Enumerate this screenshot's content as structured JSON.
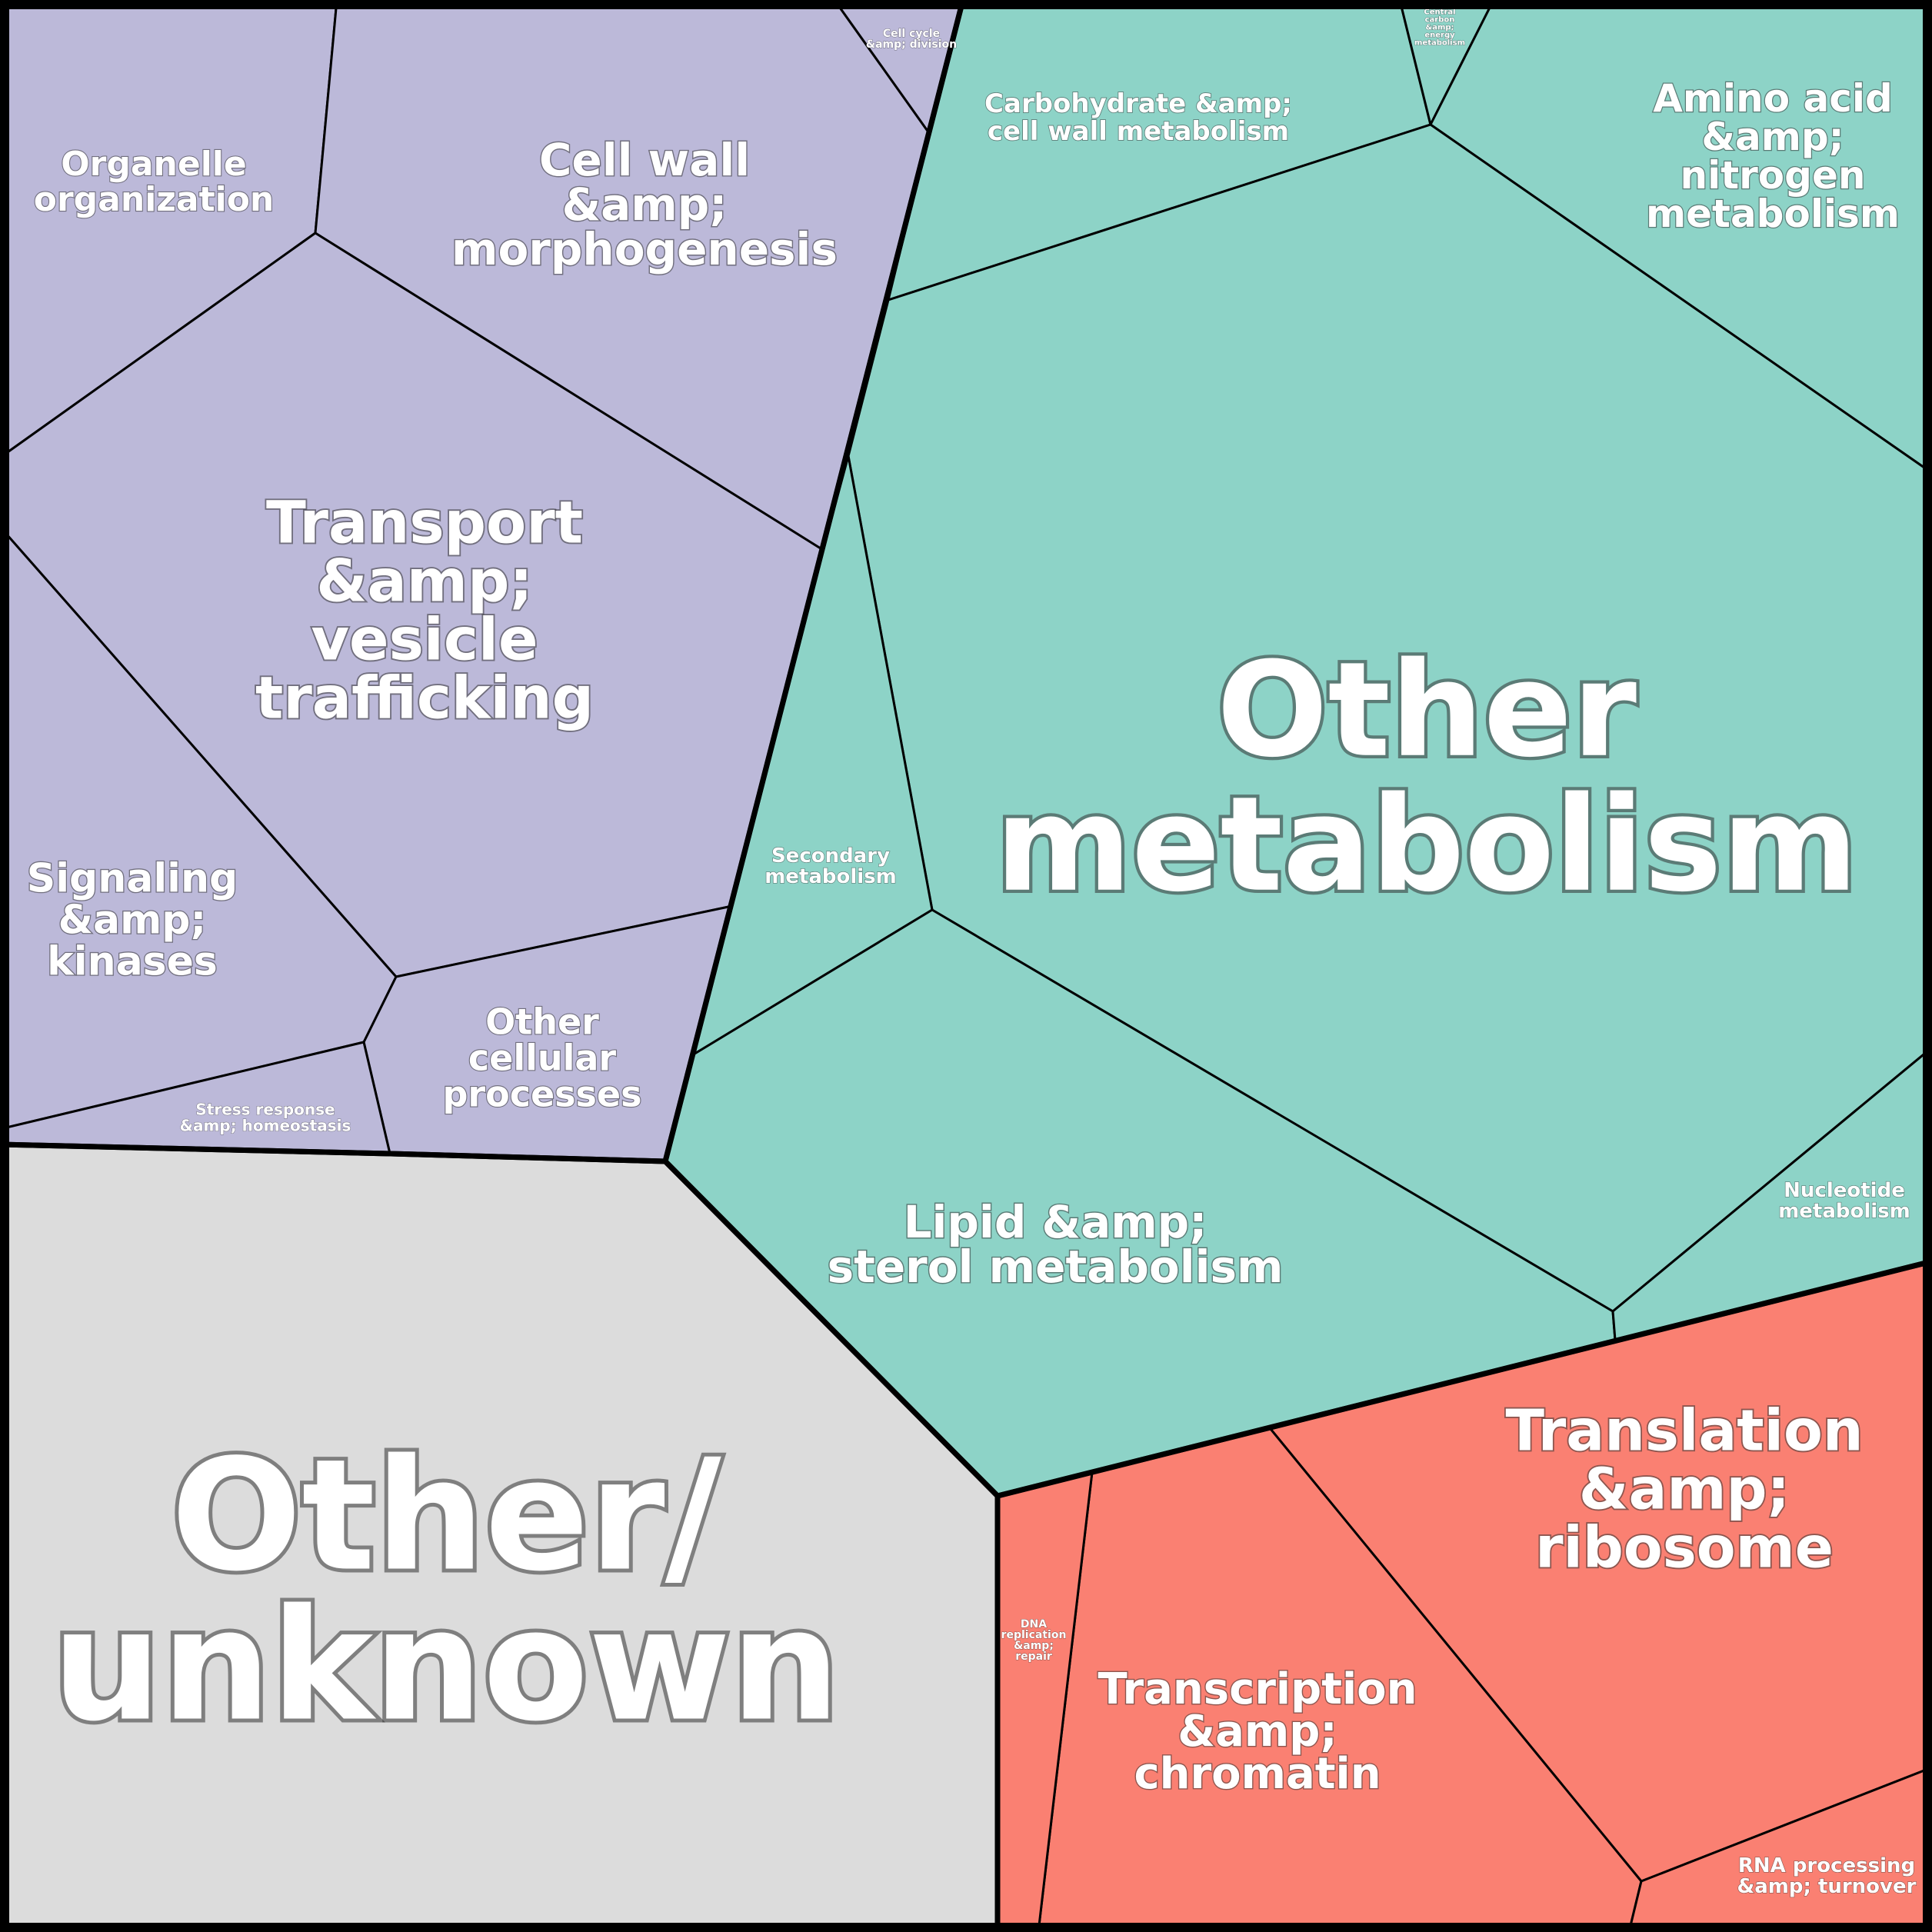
{
  "groups": [
    {
      "id": "cellular",
      "color": "#bcb9d9"
    },
    {
      "id": "metabolism",
      "color": "#8dd3c7"
    },
    {
      "id": "info",
      "color": "#fa8072"
    },
    {
      "id": "unknown",
      "color": "#dcdcdc"
    }
  ],
  "cells": [
    {
      "id": "organelle",
      "group": "cellular",
      "lines": [
        "Organelle",
        "organization"
      ]
    },
    {
      "id": "cellwall",
      "group": "cellular",
      "lines": [
        "Cell wall",
        "&amp;",
        "morphogenesis"
      ]
    },
    {
      "id": "cellcycle",
      "group": "cellular",
      "lines": [
        "Cell cycle",
        "&amp; division"
      ]
    },
    {
      "id": "transport",
      "group": "cellular",
      "lines": [
        "Transport",
        "&amp;",
        "vesicle",
        "trafficking"
      ]
    },
    {
      "id": "signaling",
      "group": "cellular",
      "lines": [
        "Signaling",
        "&amp;",
        "kinases"
      ]
    },
    {
      "id": "othercell",
      "group": "cellular",
      "lines": [
        "Other",
        "cellular",
        "processes"
      ]
    },
    {
      "id": "stress",
      "group": "cellular",
      "lines": [
        "Stress response",
        "&amp; homeostasis"
      ]
    },
    {
      "id": "carb",
      "group": "metabolism",
      "lines": [
        "Carbohydrate &amp;",
        "cell wall metabolism"
      ]
    },
    {
      "id": "central",
      "group": "metabolism",
      "lines": [
        "Central",
        "carbon",
        "&amp;",
        "energy",
        "metabolism"
      ]
    },
    {
      "id": "amino",
      "group": "metabolism",
      "lines": [
        "Amino acid",
        "&amp;",
        "nitrogen",
        "metabolism"
      ]
    },
    {
      "id": "othermeta",
      "group": "metabolism",
      "lines": [
        "Other",
        "metabolism"
      ]
    },
    {
      "id": "secondary",
      "group": "metabolism",
      "lines": [
        "Secondary",
        "metabolism"
      ]
    },
    {
      "id": "lipid",
      "group": "metabolism",
      "lines": [
        "Lipid &amp;",
        "sterol metabolism"
      ]
    },
    {
      "id": "nucleotide",
      "group": "metabolism",
      "lines": [
        "Nucleotide",
        "metabolism"
      ]
    },
    {
      "id": "translation",
      "group": "info",
      "lines": [
        "Translation",
        "&amp;",
        "ribosome"
      ]
    },
    {
      "id": "transcription",
      "group": "info",
      "lines": [
        "Transcription",
        "&amp;",
        "chromatin"
      ]
    },
    {
      "id": "dna",
      "group": "info",
      "lines": [
        "DNA",
        "replication",
        "&amp;",
        "repair"
      ]
    },
    {
      "id": "rna",
      "group": "info",
      "lines": [
        "RNA processing",
        "&amp; turnover"
      ]
    },
    {
      "id": "unknown",
      "group": "unknown",
      "lines": [
        "Other/",
        "unknown"
      ]
    }
  ]
}
